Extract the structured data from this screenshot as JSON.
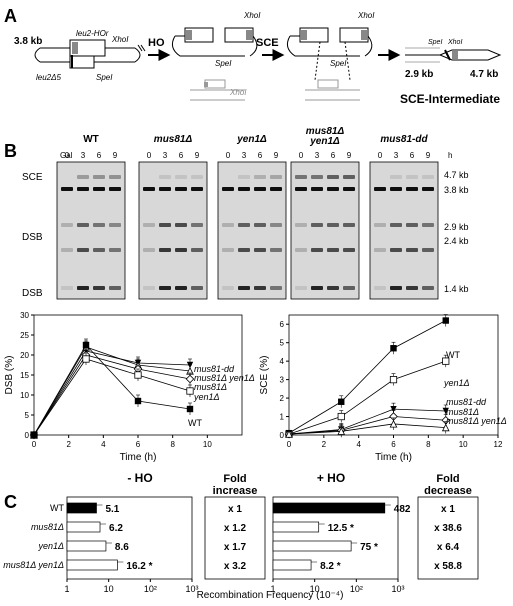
{
  "panel_a": {
    "letter": "A",
    "sizes": [
      "3.8 kb",
      "2.9 kb",
      "4.7 kb"
    ],
    "gene_labels": [
      "leu2-HOr",
      "leu2Δ5"
    ],
    "sites": [
      "XhoI",
      "SpeI"
    ],
    "arrow_labels": [
      "HO",
      "SCE"
    ],
    "intermediate_label": "SCE-Intermediate"
  },
  "panel_b": {
    "letter": "B",
    "blots": [
      {
        "label": "WT",
        "italic": false
      },
      {
        "label": "mus81Δ",
        "italic": true
      },
      {
        "label": "yen1Δ",
        "italic": true
      },
      {
        "label": "mus81Δ yen1Δ",
        "italic": true
      },
      {
        "label": "mus81-dd",
        "italic": true
      }
    ],
    "gal_label": "Gal",
    "time_unit": "h",
    "timepoints": [
      "0",
      "3",
      "6",
      "9"
    ],
    "row_labels": [
      "SCE",
      "DSB",
      "DSB"
    ],
    "band_sizes": [
      "4.7 kb",
      "3.8 kb",
      "2.9 kb",
      "2.4 kb",
      "1.4 kb"
    ]
  },
  "chart_data": [
    {
      "type": "line",
      "ylabel": "DSB (%)",
      "xlabel": "Time (h)",
      "x": [
        0,
        3,
        6,
        9
      ],
      "xlim": [
        0,
        12
      ],
      "ylim": [
        0,
        30
      ],
      "xticks": [
        0,
        2,
        4,
        6,
        8,
        10
      ],
      "yticks": [
        0,
        5,
        10,
        15,
        20,
        25,
        30
      ],
      "series": [
        {
          "name": "mus81-dd",
          "values": [
            0,
            21,
            18,
            17.5
          ],
          "marker": "triangle-down"
        },
        {
          "name": "mus81Δ yen1Δ",
          "values": [
            0,
            22,
            17.5,
            16
          ],
          "marker": "triangle-up"
        },
        {
          "name": "mus81Δ",
          "values": [
            0,
            20,
            16.5,
            14
          ],
          "marker": "diamond-open"
        },
        {
          "name": "yen1Δ",
          "values": [
            0,
            19,
            15,
            11
          ],
          "marker": "square-open"
        },
        {
          "name": "WT",
          "values": [
            0,
            22.5,
            8.5,
            6.5
          ],
          "marker": "square-filled"
        }
      ]
    },
    {
      "type": "line",
      "ylabel": "SCE (%)",
      "xlabel": "Time (h)",
      "x": [
        0,
        3,
        6,
        9
      ],
      "xlim": [
        0,
        12
      ],
      "ylim": [
        0,
        6.5
      ],
      "xticks": [
        0,
        2,
        4,
        6,
        8,
        10,
        12
      ],
      "yticks": [
        0,
        1,
        2,
        3,
        4,
        5,
        6
      ],
      "series": [
        {
          "name": "WT",
          "values": [
            0.1,
            1.8,
            4.7,
            6.2
          ],
          "marker": "square-filled"
        },
        {
          "name": "yen1Δ",
          "values": [
            0.05,
            1.0,
            3.0,
            4.0
          ],
          "marker": "square-open"
        },
        {
          "name": "mus81-dd",
          "values": [
            0.05,
            0.3,
            1.4,
            1.3
          ],
          "marker": "triangle-down"
        },
        {
          "name": "mus81Δ",
          "values": [
            0.05,
            0.25,
            1.0,
            0.8
          ],
          "marker": "diamond-open"
        },
        {
          "name": "mus81Δ yen1Δ",
          "values": [
            0.05,
            0.2,
            0.6,
            0.4
          ],
          "marker": "triangle-up"
        }
      ]
    },
    {
      "type": "bar",
      "title": "- HO",
      "xlabel": "Recombination Frequency (10⁻⁴)",
      "log_scale": true,
      "xlim": [
        1,
        1000
      ],
      "xticks": [
        "1",
        "10",
        "10²",
        "10³"
      ],
      "categories": [
        "WT",
        "mus81Δ",
        "yen1Δ",
        "mus81Δ yen1Δ"
      ],
      "values": [
        5.1,
        6.2,
        8.6,
        16.2
      ],
      "value_labels": [
        "5.1",
        "6.2",
        "8.6",
        "16.2"
      ],
      "significant": [
        false,
        false,
        false,
        true
      ],
      "fold_header": "Fold increase",
      "fold": [
        "x 1",
        "x 1.2",
        "x 1.7",
        "x 3.2"
      ]
    },
    {
      "type": "bar",
      "title": "+ HO",
      "xlabel": "Recombination Frequency (10⁻⁴)",
      "log_scale": true,
      "xlim": [
        1,
        1000
      ],
      "xticks": [
        "1",
        "10",
        "10²",
        "10³"
      ],
      "categories": [
        "WT",
        "mus81Δ",
        "yen1Δ",
        "mus81Δ yen1Δ"
      ],
      "values": [
        482,
        12.5,
        75,
        8.2
      ],
      "value_labels": [
        "482",
        "12.5",
        "75",
        "8.2"
      ],
      "significant": [
        false,
        true,
        true,
        true
      ],
      "fold_header": "Fold decrease",
      "fold": [
        "x 1",
        "x 38.6",
        "x 6.4",
        "x 58.8"
      ]
    }
  ]
}
